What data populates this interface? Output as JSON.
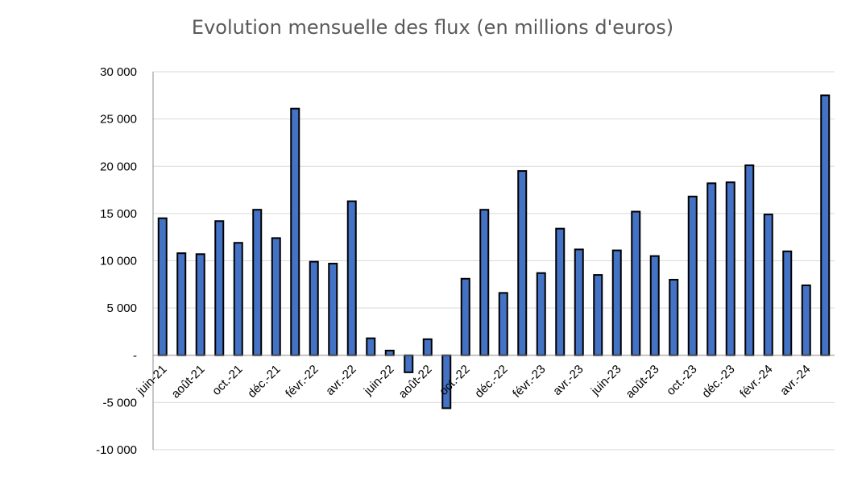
{
  "chart_data": {
    "type": "bar",
    "title": "Evolution mensuelle des flux (en millions d'euros)",
    "xlabel": "",
    "ylabel": "",
    "ylim": [
      -10000,
      30000
    ],
    "yticks": [
      30000,
      25000,
      20000,
      15000,
      10000,
      5000,
      0,
      -5000,
      -10000
    ],
    "ytick_labels": [
      "30 000",
      "25 000",
      "20 000",
      "15 000",
      "10 000",
      "5 000",
      "-",
      "-5 000",
      "-10 000"
    ],
    "grid": true,
    "legend": "none",
    "bar_color": "#4472c4",
    "bar_border_color": "#000000",
    "categories": [
      "juin-21",
      "juil.-21",
      "août-21",
      "sept.-21",
      "oct.-21",
      "nov.-21",
      "déc.-21",
      "janv.-22",
      "févr.-22",
      "mars-22",
      "avr.-22",
      "mai-22",
      "juin-22",
      "juil.-22",
      "août-22",
      "sept.-22",
      "oct.-22",
      "nov.-22",
      "déc.-22",
      "janv.-23",
      "févr.-23",
      "mars-23",
      "avr.-23",
      "mai-23",
      "juin-23",
      "juil.-23",
      "août-23",
      "sept.-23",
      "oct.-23",
      "nov.-23",
      "déc.-23",
      "janv.-24",
      "févr.-24",
      "mars-24",
      "avr.-24",
      "mai-24"
    ],
    "visible_category_labels": [
      "juin-21",
      "août-21",
      "oct.-21",
      "déc.-21",
      "févr.-22",
      "avr.-22",
      "juin-22",
      "août-22",
      "oct.-22",
      "déc.-22",
      "févr.-23",
      "avr.-23",
      "juin-23",
      "août-23",
      "oct.-23",
      "déc.-23",
      "févr.-24",
      "avr.-24"
    ],
    "values": [
      14500,
      10800,
      10700,
      14200,
      11900,
      15400,
      12400,
      26100,
      9900,
      9700,
      16300,
      1800,
      500,
      -1800,
      1700,
      -5600,
      8100,
      15400,
      6600,
      19500,
      8700,
      13400,
      11200,
      8500,
      11100,
      15200,
      10500,
      8000,
      16800,
      18200,
      18300,
      20100,
      14900,
      11000,
      7400,
      27500
    ]
  }
}
